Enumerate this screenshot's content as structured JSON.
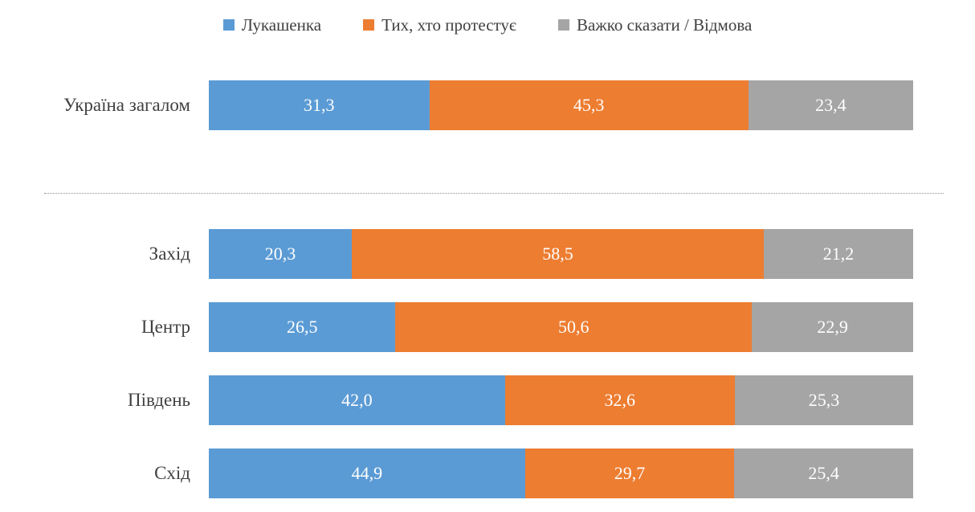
{
  "chart_data": {
    "type": "bar",
    "orientation": "horizontal",
    "stacked": true,
    "unit": "percent",
    "xlim": [
      0,
      100
    ],
    "grid": false,
    "legend_position": "top-center",
    "value_labels_position": "inside-center",
    "value_label_color": "#ffffff",
    "axis_label_color": "#404040",
    "decimal_separator": ",",
    "categories": [
      "Україна загалом",
      "Захід",
      "Центр",
      "Південь",
      "Схід"
    ],
    "separator_after_category_index": 0,
    "series": [
      {
        "name": "Лукашенка",
        "color": "#5B9BD5",
        "values": [
          31.3,
          20.3,
          26.5,
          42.0,
          44.9
        ],
        "values_display": [
          "31,3",
          "20,3",
          "26,5",
          "42,0",
          "44,9"
        ]
      },
      {
        "name": "Тих, хто протестує",
        "color": "#ED7D31",
        "values": [
          45.3,
          58.5,
          50.6,
          32.6,
          29.7
        ],
        "values_display": [
          "45,3",
          "58,5",
          "50,6",
          "32,6",
          "29,7"
        ]
      },
      {
        "name": "Важко сказати / Відмова",
        "color": "#A5A5A5",
        "values": [
          23.4,
          21.2,
          22.9,
          25.3,
          25.4
        ],
        "values_display": [
          "23,4",
          "21,2",
          "22,9",
          "25,3",
          "25,4"
        ]
      }
    ]
  }
}
